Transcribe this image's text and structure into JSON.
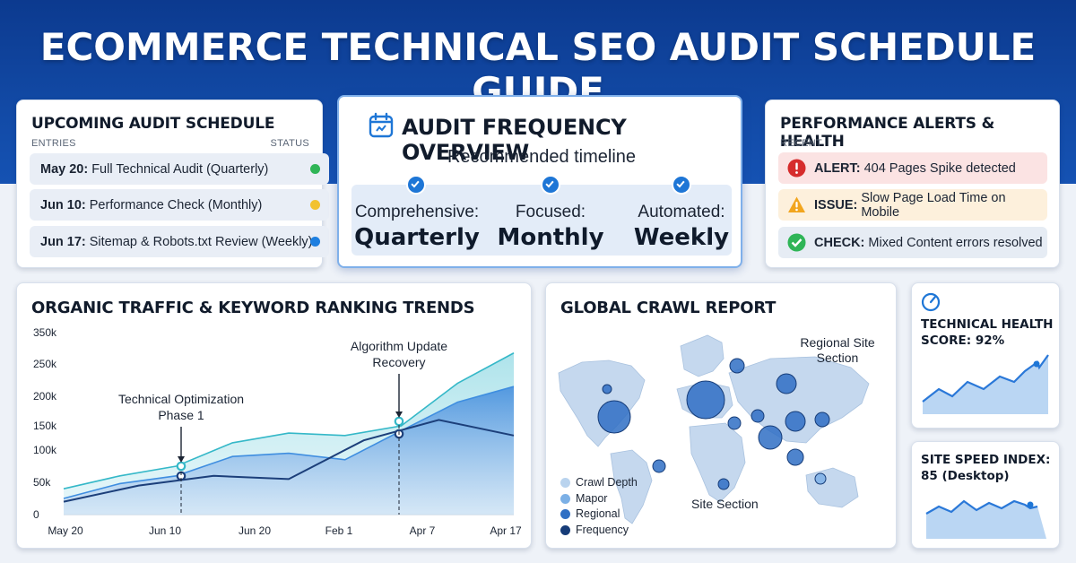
{
  "header": {
    "title": "ECOMMERCE TECHNICAL SEO AUDIT SCHEDULE GUIDE"
  },
  "schedule": {
    "title": "UPCOMING AUDIT SCHEDULE",
    "col_entries": "ENTRIES",
    "col_status": "STATUS",
    "rows": [
      {
        "date": "May 20:",
        "text": "Full Technical Audit (Quarterly)",
        "status_color": "#2fb557"
      },
      {
        "date": "Jun 10:",
        "text": "Performance Check (Monthly)",
        "status_color": "#f2c230"
      },
      {
        "date": "Jun 17:",
        "text": "Sitemap & Robots.txt Review (Weekly)",
        "status_color": "#1e7fe0"
      }
    ]
  },
  "frequency": {
    "title": "AUDIT FREQUENCY OVERVIEW",
    "icon": "calendar-icon",
    "subtitle": "Recommended timeline",
    "columns": [
      {
        "label": "Comprehensive:",
        "value": "Quarterly"
      },
      {
        "label": "Focused:",
        "value": "Monthly"
      },
      {
        "label": "Automated:",
        "value": "Weekly"
      }
    ]
  },
  "alerts": {
    "title": "PERFORMANCE ALERTS & HEALTH",
    "recent_label": "RECENT",
    "rows": [
      {
        "kind": "ALERT:",
        "text": "404 Pages Spike detected",
        "icon": "error-icon",
        "bg": "#fbe3e3",
        "icon_color": "#d62c2c"
      },
      {
        "kind": "ISSUE:",
        "text": "Slow Page Load Time on Mobile",
        "icon": "warning-icon",
        "bg": "#fdf0dc",
        "icon_color": "#f2a51e"
      },
      {
        "kind": "CHECK:",
        "text": "Mixed Content errors resolved",
        "icon": "check-circle-icon",
        "bg": "#e6ecf4",
        "icon_color": "#2fb557"
      }
    ]
  },
  "traffic": {
    "title": "ORGANIC TRAFFIC & KEYWORD RANKING TRENDS",
    "annotations": [
      {
        "text_line1": "Technical Optimization",
        "text_line2": "Phase 1"
      },
      {
        "text_line1": "Algorithm Update",
        "text_line2": "Recovery"
      }
    ]
  },
  "chart_data": {
    "type": "area",
    "title": "ORGANIC TRAFFIC & KEYWORD RANKING TRENDS",
    "xlabel": "",
    "ylabel": "",
    "x_ticks": [
      "May 20",
      "Jun 10",
      "Jun 20",
      "Feb 1",
      "Apr 7",
      "Apr 17"
    ],
    "y_ticks": [
      "0",
      "50k",
      "100k",
      "150k",
      "200k",
      "250k",
      "350k"
    ],
    "ylim": [
      0,
      350000
    ],
    "series": [
      {
        "values": [
          40000,
          60000,
          75000,
          115000,
          135000,
          130000,
          150000,
          220000,
          285000
        ],
        "color": "#35b8c8"
      },
      {
        "values": [
          25000,
          48000,
          60000,
          90000,
          95000,
          85000,
          140000,
          190000,
          215000
        ],
        "color": "#3f8ee0"
      },
      {
        "values": [
          20000,
          45000,
          60000,
          55000,
          120000,
          160000,
          130000
        ],
        "color": "#1c3f7a"
      }
    ]
  },
  "crawl": {
    "title": "GLOBAL CRAWL REPORT",
    "label_regional": "Regional Site",
    "label_regional2": "Section",
    "label_site": "Site Section",
    "legend": [
      {
        "label": "Crawl Depth",
        "color": "#b9d3ee"
      },
      {
        "label": "Mapor",
        "color": "#7cb0e6"
      },
      {
        "label": "Regional",
        "color": "#2f6fc4"
      },
      {
        "label": "Frequency",
        "color": "#163c78"
      }
    ]
  },
  "health": {
    "title_line1": "TECHNICAL HEALTH",
    "title_line2": "SCORE: 92%",
    "icon": "gauge-icon",
    "score": 92
  },
  "speed": {
    "title_line1": "SITE SPEED INDEX:",
    "title_line2": "85 (Desktop)",
    "score": 85
  }
}
